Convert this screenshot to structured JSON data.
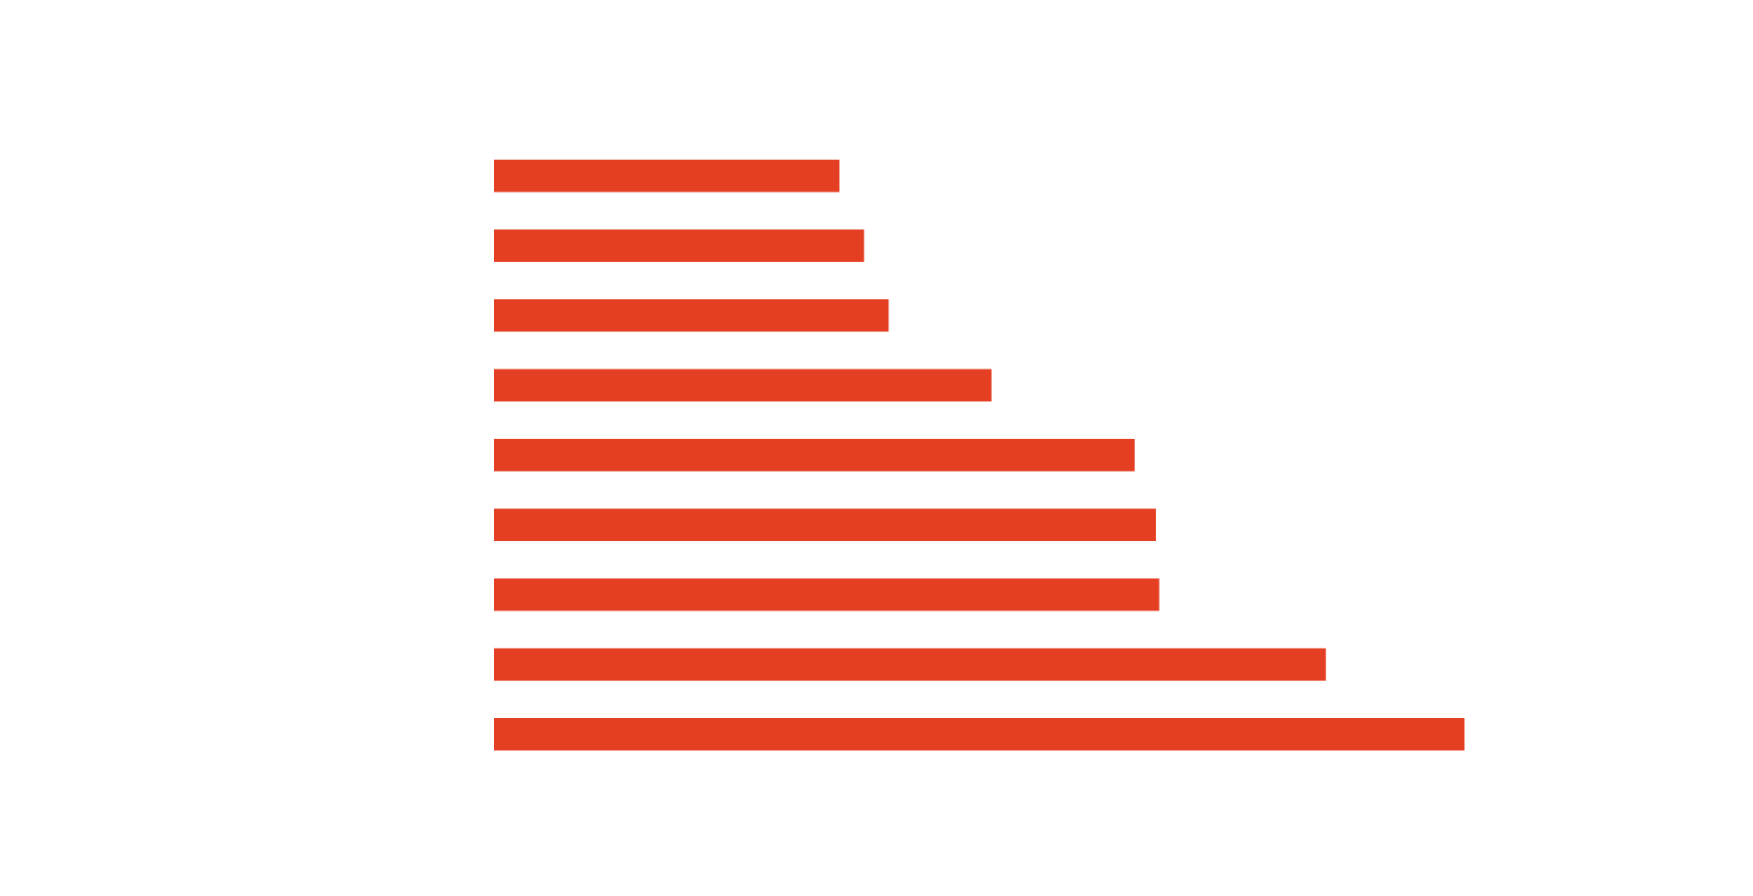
{
  "chart_data": {
    "type": "barh",
    "categories": [
      null,
      null,
      null,
      null,
      null,
      null,
      null,
      null,
      null
    ],
    "values": [
      309,
      331,
      353,
      445,
      573,
      592,
      595,
      744,
      868
    ],
    "color": "#e43f22",
    "xlim": [
      0,
      868
    ]
  }
}
